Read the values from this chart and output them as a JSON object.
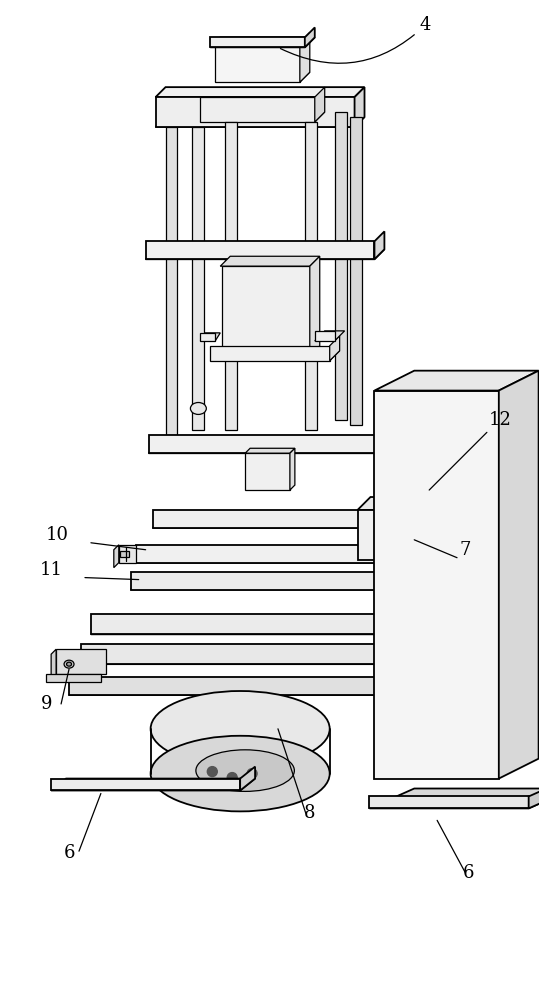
{
  "bg_color": "#ffffff",
  "line_color": "#000000",
  "lw": 0.9,
  "lw2": 1.3,
  "label_fs": 13,
  "fig_w": 5.4,
  "fig_h": 10.0,
  "dpi": 100
}
